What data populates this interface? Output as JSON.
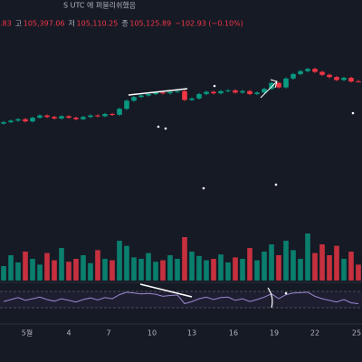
{
  "header": {
    "published": "S UTC 에 퍼블리쉬했음",
    "ohlc": [
      {
        "value": ".83"
      },
      {
        "label": "고",
        "value": "105,397.06"
      },
      {
        "label": "저",
        "value": "105,110.25"
      },
      {
        "label": "종",
        "value": "105,125.89"
      },
      {
        "value": "−102.93 (−0.10%)"
      }
    ]
  },
  "chart_data": {
    "type": "candlestick",
    "x_labels": [
      "5월",
      "4",
      "7",
      "10",
      "13",
      "16",
      "19",
      "22",
      "25"
    ],
    "open": [
      99500,
      99700,
      99900,
      100100,
      99800,
      100300,
      100600,
      100400,
      100200,
      100500,
      100300,
      100100,
      100400,
      100600,
      100500,
      100800,
      100700,
      101500,
      102600,
      103100,
      103300,
      103500,
      103700,
      103600,
      103800,
      103900,
      102700,
      102900,
      103500,
      103800,
      103600,
      103900,
      104000,
      103700,
      103900,
      103500,
      103700,
      104200,
      105000,
      104400,
      105600,
      106200,
      106600,
      106900,
      106500,
      106100,
      105800,
      105400,
      105700,
      105228.82
    ],
    "high": [
      99850,
      100050,
      100250,
      100250,
      100450,
      100750,
      100750,
      100550,
      100650,
      100650,
      100450,
      100550,
      100750,
      100750,
      100950,
      100950,
      101650,
      102750,
      103250,
      103450,
      103650,
      103850,
      103850,
      103950,
      104050,
      104050,
      103050,
      103650,
      103950,
      103950,
      104050,
      104150,
      104150,
      104050,
      104050,
      103850,
      104350,
      105150,
      105150,
      105750,
      106350,
      106750,
      107050,
      107050,
      106650,
      106250,
      105950,
      105850,
      105850,
      105397.06
    ],
    "low": [
      99350,
      99550,
      99750,
      99650,
      99650,
      100150,
      100250,
      100050,
      100050,
      100150,
      99950,
      99950,
      100250,
      100350,
      100350,
      100550,
      100550,
      101350,
      102450,
      102950,
      103150,
      103350,
      103450,
      103450,
      103650,
      102550,
      102550,
      102750,
      103350,
      103450,
      103450,
      103750,
      103550,
      103550,
      103350,
      103350,
      103550,
      104050,
      104250,
      104250,
      105450,
      106050,
      106450,
      106350,
      105950,
      105650,
      105250,
      105250,
      105050,
      105110.25
    ],
    "close": [
      99700,
      99900,
      100100,
      99800,
      100300,
      100600,
      100400,
      100200,
      100500,
      100300,
      100100,
      100400,
      100600,
      100500,
      100800,
      100700,
      101500,
      102600,
      103100,
      103300,
      103500,
      103700,
      103600,
      103800,
      103900,
      102700,
      102900,
      103500,
      103800,
      103600,
      103900,
      104000,
      103700,
      103900,
      103500,
      103700,
      104200,
      105000,
      104400,
      105600,
      106200,
      106600,
      106900,
      106500,
      106100,
      105800,
      105400,
      105700,
      105200,
      105125.89
    ],
    "volume": [
      20,
      35,
      25,
      40,
      30,
      22,
      38,
      28,
      45,
      26,
      30,
      35,
      24,
      42,
      30,
      28,
      55,
      48,
      32,
      30,
      38,
      26,
      28,
      35,
      30,
      60,
      40,
      34,
      28,
      30,
      36,
      25,
      32,
      30,
      45,
      28,
      40,
      50,
      35,
      55,
      42,
      30,
      65,
      38,
      50,
      35,
      48,
      30,
      40,
      22
    ],
    "rsi": [
      45,
      50,
      55,
      48,
      52,
      56,
      50,
      46,
      52,
      48,
      44,
      50,
      54,
      49,
      55,
      52,
      62,
      68,
      66,
      64,
      65,
      63,
      58,
      60,
      61,
      40,
      45,
      52,
      56,
      50,
      55,
      56,
      48,
      52,
      45,
      50,
      56,
      64,
      52,
      62,
      66,
      67,
      68,
      58,
      52,
      48,
      44,
      50,
      42,
      40
    ],
    "ylim": [
      85000,
      115000
    ],
    "volume_lim": [
      0,
      100
    ],
    "rsi_lim": [
      0,
      100
    ],
    "rsi_bands": [
      30,
      70
    ],
    "up_color": "#089981",
    "down_color": "#f23645",
    "rsi_color": "#9c8ccf"
  }
}
